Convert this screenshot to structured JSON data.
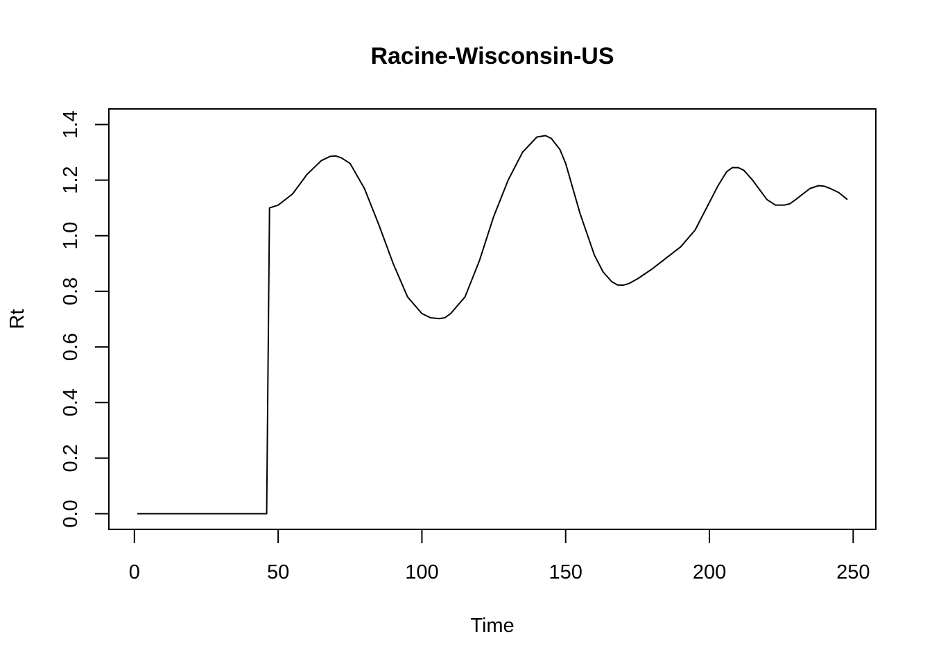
{
  "chart_data": {
    "type": "line",
    "title": "Racine-Wisconsin-US",
    "xlabel": "Time",
    "ylabel": "Rt",
    "xlim": [
      1,
      248
    ],
    "ylim": [
      0,
      1.4
    ],
    "x_ticks": [
      0,
      50,
      100,
      150,
      200,
      250
    ],
    "y_ticks": [
      0.0,
      0.2,
      0.4,
      0.6,
      0.8,
      1.0,
      1.2,
      1.4
    ],
    "x_tick_labels": [
      "0",
      "50",
      "100",
      "150",
      "200",
      "250"
    ],
    "y_tick_labels": [
      "0.0",
      "0.2",
      "0.4",
      "0.6",
      "0.8",
      "1.0",
      "1.2",
      "1.4"
    ],
    "grid": false,
    "series": [
      {
        "x": [
          1,
          46,
          46.5,
          47,
          50,
          55,
          60,
          65,
          68,
          70,
          72,
          75,
          80,
          85,
          90,
          95,
          100,
          103,
          106,
          108,
          110,
          115,
          120,
          125,
          130,
          135,
          140,
          143,
          145,
          148,
          150,
          155,
          160,
          163,
          166,
          168,
          170,
          172,
          175,
          180,
          185,
          190,
          195,
          200,
          203,
          206,
          208,
          210,
          212,
          215,
          220,
          223,
          226,
          228,
          230,
          235,
          238,
          240,
          242,
          245,
          248
        ],
        "y": [
          0,
          0,
          0.55,
          1.1,
          1.11,
          1.15,
          1.22,
          1.27,
          1.285,
          1.287,
          1.28,
          1.26,
          1.17,
          1.04,
          0.9,
          0.78,
          0.72,
          0.705,
          0.702,
          0.705,
          0.72,
          0.78,
          0.91,
          1.07,
          1.2,
          1.3,
          1.355,
          1.36,
          1.35,
          1.31,
          1.26,
          1.08,
          0.93,
          0.87,
          0.835,
          0.823,
          0.822,
          0.828,
          0.845,
          0.88,
          0.92,
          0.96,
          1.02,
          1.12,
          1.18,
          1.23,
          1.245,
          1.245,
          1.235,
          1.2,
          1.13,
          1.11,
          1.11,
          1.115,
          1.13,
          1.17,
          1.18,
          1.178,
          1.17,
          1.155,
          1.13
        ]
      }
    ]
  }
}
